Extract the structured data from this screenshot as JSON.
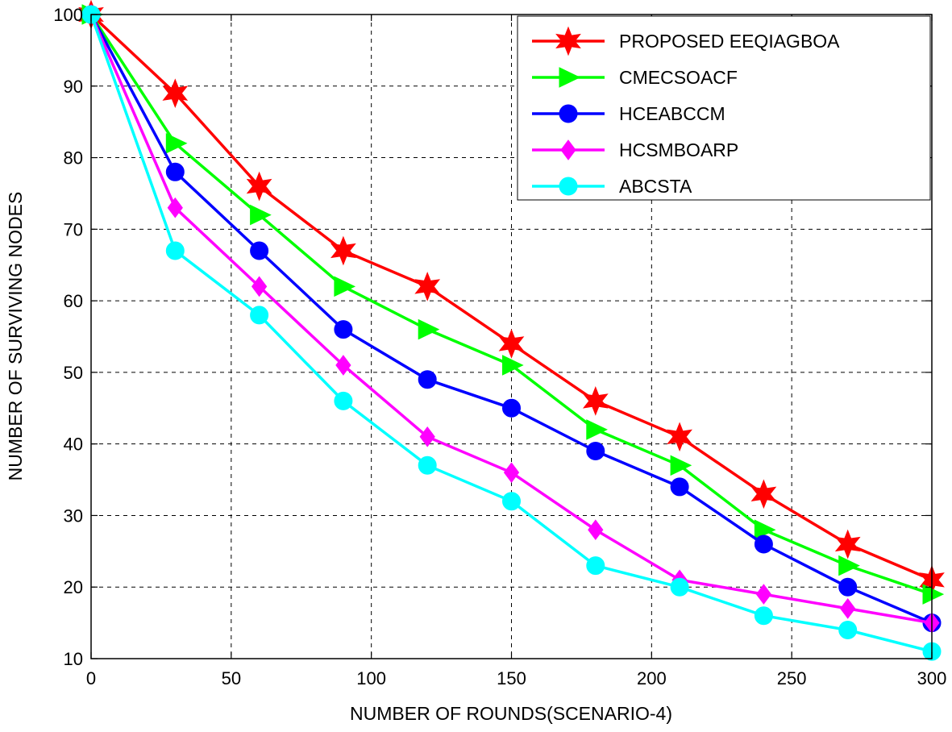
{
  "chart_data": {
    "type": "line",
    "title": "",
    "xlabel": "NUMBER OF ROUNDS(SCENARIO-4)",
    "ylabel": "NUMBER OF SURVIVING NODES",
    "x": [
      0,
      30,
      60,
      90,
      120,
      150,
      180,
      210,
      240,
      270,
      300
    ],
    "xlim": [
      0,
      300
    ],
    "ylim": [
      10,
      100
    ],
    "xticks": [
      0,
      50,
      100,
      150,
      200,
      250,
      300
    ],
    "yticks": [
      10,
      20,
      30,
      40,
      50,
      60,
      70,
      80,
      90,
      100
    ],
    "grid": true,
    "legend_position": "top-right",
    "series": [
      {
        "name": "PROPOSED EEQIAGBOA",
        "color": "#ff0000",
        "marker": "star",
        "values": [
          100,
          89,
          76,
          67,
          62,
          54,
          46,
          41,
          33,
          26,
          21
        ]
      },
      {
        "name": "CMECSOACF",
        "color": "#00ff00",
        "marker": "triangle-right",
        "values": [
          100,
          82,
          72,
          62,
          56,
          51,
          42,
          37,
          28,
          23,
          19
        ]
      },
      {
        "name": "HCEABCCM",
        "color": "#0000ff",
        "marker": "circle",
        "values": [
          100,
          78,
          67,
          56,
          49,
          45,
          39,
          34,
          26,
          20,
          15
        ]
      },
      {
        "name": "HCSMBOARP",
        "color": "#ff00ff",
        "marker": "diamond",
        "values": [
          100,
          73,
          62,
          51,
          41,
          36,
          28,
          21,
          19,
          17,
          15
        ]
      },
      {
        "name": "ABCSTA",
        "color": "#00ffff",
        "marker": "circle",
        "values": [
          100,
          67,
          58,
          46,
          37,
          32,
          23,
          20,
          16,
          14,
          11
        ]
      }
    ]
  }
}
